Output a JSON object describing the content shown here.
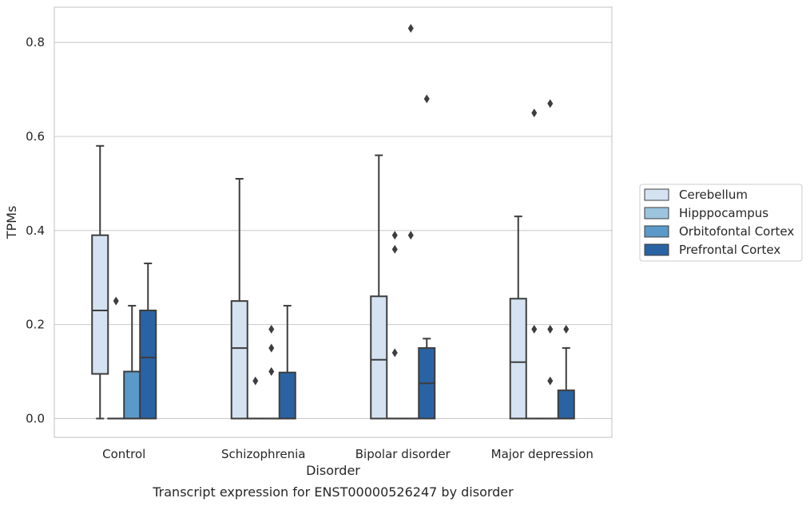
{
  "chart_data": {
    "type": "box",
    "title": "",
    "caption": "Transcript expression for ENST00000526247 by disorder",
    "xlabel": "Disorder",
    "ylabel": "TPMs",
    "ylim": [
      -0.04,
      0.875
    ],
    "yticks": [
      0.0,
      0.2,
      0.4,
      0.6,
      0.8
    ],
    "ytick_labels": [
      "0.0",
      "0.2",
      "0.4",
      "0.6",
      "0.8"
    ],
    "grid": "horizontal",
    "legend_position": "right",
    "categories": [
      "Control",
      "Schizophrenia",
      "Bipolar disorder",
      "Major depression"
    ],
    "series": [
      {
        "name": "Cerebellum",
        "color": "#d4e2f1",
        "boxes": [
          {
            "q1": 0.095,
            "median": 0.23,
            "q3": 0.39,
            "whislo": 0.0,
            "whishi": 0.58,
            "fliers": []
          },
          {
            "q1": 0.0,
            "median": 0.15,
            "q3": 0.25,
            "whislo": 0.0,
            "whishi": 0.51,
            "fliers": []
          },
          {
            "q1": 0.0,
            "median": 0.125,
            "q3": 0.26,
            "whislo": 0.0,
            "whishi": 0.56,
            "fliers": []
          },
          {
            "q1": 0.0,
            "median": 0.12,
            "q3": 0.255,
            "whislo": 0.0,
            "whishi": 0.43,
            "fliers": []
          }
        ]
      },
      {
        "name": "Hipppocampus",
        "color": "#9dc4de",
        "boxes": [
          {
            "q1": 0.0,
            "median": 0.0,
            "q3": 0.0,
            "whislo": 0.0,
            "whishi": 0.0,
            "fliers": [
              0.25
            ]
          },
          {
            "q1": 0.0,
            "median": 0.0,
            "q3": 0.0,
            "whislo": 0.0,
            "whishi": 0.0,
            "fliers": [
              0.08
            ]
          },
          {
            "q1": 0.0,
            "median": 0.0,
            "q3": 0.0,
            "whislo": 0.0,
            "whishi": 0.0,
            "fliers": [
              0.14,
              0.36,
              0.39
            ]
          },
          {
            "q1": 0.0,
            "median": 0.0,
            "q3": 0.0,
            "whislo": 0.0,
            "whishi": 0.0,
            "fliers": [
              0.19,
              0.65
            ]
          }
        ]
      },
      {
        "name": "Orbitofontal Cortex",
        "color": "#5a99c8",
        "boxes": [
          {
            "q1": 0.0,
            "median": 0.0,
            "q3": 0.1,
            "whislo": 0.0,
            "whishi": 0.24,
            "fliers": []
          },
          {
            "q1": 0.0,
            "median": 0.0,
            "q3": 0.0,
            "whislo": 0.0,
            "whishi": 0.0,
            "fliers": [
              0.1,
              0.15,
              0.19
            ]
          },
          {
            "q1": 0.0,
            "median": 0.0,
            "q3": 0.0,
            "whislo": 0.0,
            "whishi": 0.0,
            "fliers": [
              0.39,
              0.83
            ]
          },
          {
            "q1": 0.0,
            "median": 0.0,
            "q3": 0.0,
            "whislo": 0.0,
            "whishi": 0.0,
            "fliers": [
              0.08,
              0.19,
              0.67
            ]
          }
        ]
      },
      {
        "name": "Prefrontal Cortex",
        "color": "#2a63a4",
        "boxes": [
          {
            "q1": 0.0,
            "median": 0.13,
            "q3": 0.23,
            "whislo": 0.0,
            "whishi": 0.33,
            "fliers": []
          },
          {
            "q1": 0.0,
            "median": 0.0,
            "q3": 0.098,
            "whislo": 0.0,
            "whishi": 0.24,
            "fliers": []
          },
          {
            "q1": 0.0,
            "median": 0.075,
            "q3": 0.15,
            "whislo": 0.0,
            "whishi": 0.17,
            "fliers": [
              0.68
            ]
          },
          {
            "q1": 0.0,
            "median": 0.0,
            "q3": 0.06,
            "whislo": 0.0,
            "whishi": 0.15,
            "fliers": [
              0.19
            ]
          }
        ]
      }
    ],
    "style": {
      "edge_color": "#3d3d3d",
      "grid_color": "#cccccc",
      "frame_color": "#cccccc"
    }
  }
}
